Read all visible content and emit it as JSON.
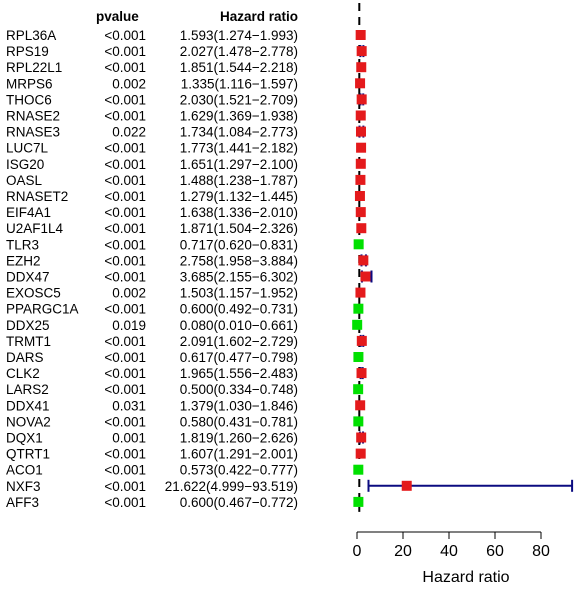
{
  "chart_data": {
    "type": "forest",
    "xlabel": "Hazard ratio",
    "xticks": [
      0,
      20,
      40,
      60,
      80
    ],
    "xlim": [
      0,
      93.519
    ],
    "reference_line": 1,
    "headers": {
      "pvalue": "pvalue",
      "hr": "Hazard ratio"
    },
    "colors": {
      "risk": "#e41a1c",
      "protective": "#00e000",
      "ci_line": "#0b0b80"
    },
    "rows": [
      {
        "gene": "RPL36A",
        "pvalue": "<0.001",
        "hr_text": "1.593(1.274−1.993)",
        "hr": 1.593,
        "lower": 1.274,
        "upper": 1.993
      },
      {
        "gene": "RPS19",
        "pvalue": "<0.001",
        "hr_text": "2.027(1.478−2.778)",
        "hr": 2.027,
        "lower": 1.478,
        "upper": 2.778
      },
      {
        "gene": "RPL22L1",
        "pvalue": "<0.001",
        "hr_text": "1.851(1.544−2.218)",
        "hr": 1.851,
        "lower": 1.544,
        "upper": 2.218
      },
      {
        "gene": "MRPS6",
        "pvalue": "0.002",
        "hr_text": "1.335(1.116−1.597)",
        "hr": 1.335,
        "lower": 1.116,
        "upper": 1.597
      },
      {
        "gene": "THOC6",
        "pvalue": "<0.001",
        "hr_text": "2.030(1.521−2.709)",
        "hr": 2.03,
        "lower": 1.521,
        "upper": 2.709
      },
      {
        "gene": "RNASE2",
        "pvalue": "<0.001",
        "hr_text": "1.629(1.369−1.938)",
        "hr": 1.629,
        "lower": 1.369,
        "upper": 1.938
      },
      {
        "gene": "RNASE3",
        "pvalue": "0.022",
        "hr_text": "1.734(1.084−2.773)",
        "hr": 1.734,
        "lower": 1.084,
        "upper": 2.773
      },
      {
        "gene": "LUC7L",
        "pvalue": "<0.001",
        "hr_text": "1.773(1.441−2.182)",
        "hr": 1.773,
        "lower": 1.441,
        "upper": 2.182
      },
      {
        "gene": "ISG20",
        "pvalue": "<0.001",
        "hr_text": "1.651(1.297−2.100)",
        "hr": 1.651,
        "lower": 1.297,
        "upper": 2.1
      },
      {
        "gene": "OASL",
        "pvalue": "<0.001",
        "hr_text": "1.488(1.238−1.787)",
        "hr": 1.488,
        "lower": 1.238,
        "upper": 1.787
      },
      {
        "gene": "RNASET2",
        "pvalue": "<0.001",
        "hr_text": "1.279(1.132−1.445)",
        "hr": 1.279,
        "lower": 1.132,
        "upper": 1.445
      },
      {
        "gene": "EIF4A1",
        "pvalue": "<0.001",
        "hr_text": "1.638(1.336−2.010)",
        "hr": 1.638,
        "lower": 1.336,
        "upper": 2.01
      },
      {
        "gene": "U2AF1L4",
        "pvalue": "<0.001",
        "hr_text": "1.871(1.504−2.326)",
        "hr": 1.871,
        "lower": 1.504,
        "upper": 2.326
      },
      {
        "gene": "TLR3",
        "pvalue": "<0.001",
        "hr_text": "0.717(0.620−0.831)",
        "hr": 0.717,
        "lower": 0.62,
        "upper": 0.831
      },
      {
        "gene": "EZH2",
        "pvalue": "<0.001",
        "hr_text": "2.758(1.958−3.884)",
        "hr": 2.758,
        "lower": 1.958,
        "upper": 3.884
      },
      {
        "gene": "DDX47",
        "pvalue": "<0.001",
        "hr_text": "3.685(2.155−6.302)",
        "hr": 3.685,
        "lower": 2.155,
        "upper": 6.302
      },
      {
        "gene": "EXOSC5",
        "pvalue": "0.002",
        "hr_text": "1.503(1.157−1.952)",
        "hr": 1.503,
        "lower": 1.157,
        "upper": 1.952
      },
      {
        "gene": "PPARGC1A",
        "pvalue": "<0.001",
        "hr_text": "0.600(0.492−0.731)",
        "hr": 0.6,
        "lower": 0.492,
        "upper": 0.731
      },
      {
        "gene": "DDX25",
        "pvalue": "0.019",
        "hr_text": "0.080(0.010−0.661)",
        "hr": 0.08,
        "lower": 0.01,
        "upper": 0.661
      },
      {
        "gene": "TRMT1",
        "pvalue": "<0.001",
        "hr_text": "2.091(1.602−2.729)",
        "hr": 2.091,
        "lower": 1.602,
        "upper": 2.729
      },
      {
        "gene": "DARS",
        "pvalue": "<0.001",
        "hr_text": "0.617(0.477−0.798)",
        "hr": 0.617,
        "lower": 0.477,
        "upper": 0.798
      },
      {
        "gene": "CLK2",
        "pvalue": "<0.001",
        "hr_text": "1.965(1.556−2.483)",
        "hr": 1.965,
        "lower": 1.556,
        "upper": 2.483
      },
      {
        "gene": "LARS2",
        "pvalue": "<0.001",
        "hr_text": "0.500(0.334−0.748)",
        "hr": 0.5,
        "lower": 0.334,
        "upper": 0.748
      },
      {
        "gene": "DDX41",
        "pvalue": "0.031",
        "hr_text": "1.379(1.030−1.846)",
        "hr": 1.379,
        "lower": 1.03,
        "upper": 1.846
      },
      {
        "gene": "NOVA2",
        "pvalue": "<0.001",
        "hr_text": "0.580(0.431−0.781)",
        "hr": 0.58,
        "lower": 0.431,
        "upper": 0.781
      },
      {
        "gene": "DQX1",
        "pvalue": "0.001",
        "hr_text": "1.819(1.260−2.626)",
        "hr": 1.819,
        "lower": 1.26,
        "upper": 2.626
      },
      {
        "gene": "QTRT1",
        "pvalue": "<0.001",
        "hr_text": "1.607(1.291−2.001)",
        "hr": 1.607,
        "lower": 1.291,
        "upper": 2.001
      },
      {
        "gene": "ACO1",
        "pvalue": "<0.001",
        "hr_text": "0.573(0.422−0.777)",
        "hr": 0.573,
        "lower": 0.422,
        "upper": 0.777
      },
      {
        "gene": "NXF3",
        "pvalue": "<0.001",
        "hr_text": "21.622(4.999−93.519)",
        "hr": 21.622,
        "lower": 4.999,
        "upper": 93.519
      },
      {
        "gene": "AFF3",
        "pvalue": "<0.001",
        "hr_text": "0.600(0.467−0.772)",
        "hr": 0.6,
        "lower": 0.467,
        "upper": 0.772
      }
    ]
  }
}
